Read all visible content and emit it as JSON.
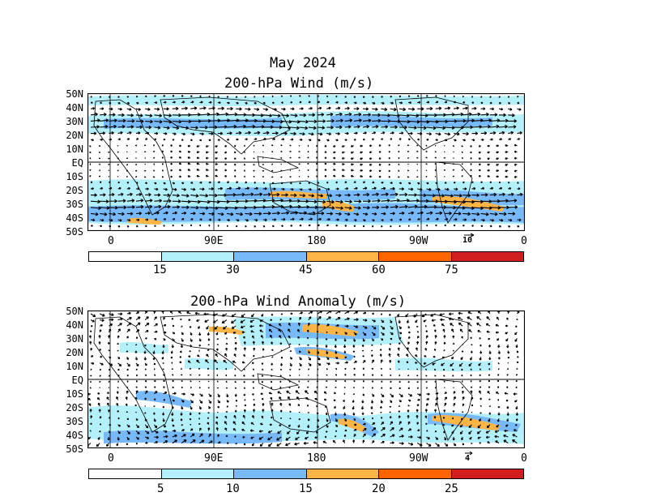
{
  "figure": {
    "title": "May 2024"
  },
  "panels": [
    {
      "title": "200-hPa Wind (m/s)",
      "lat_labels": [
        "50N",
        "40N",
        "30N",
        "20N",
        "10N",
        "EQ",
        "10S",
        "20S",
        "30S",
        "40S",
        "50S"
      ],
      "lon_labels": [
        "0",
        "90E",
        "180",
        "90W",
        "0"
      ],
      "ref_vector": "10",
      "colorbar_ticks": [
        "15",
        "30",
        "45",
        "60",
        "75"
      ]
    },
    {
      "title": "200-hPa Wind Anomaly (m/s)",
      "lat_labels": [
        "50N",
        "40N",
        "30N",
        "20N",
        "10N",
        "EQ",
        "10S",
        "20S",
        "30S",
        "40S",
        "50S"
      ],
      "lon_labels": [
        "0",
        "90E",
        "180",
        "90W",
        "0"
      ],
      "ref_vector": "4",
      "colorbar_ticks": [
        "5",
        "10",
        "15",
        "20",
        "25"
      ]
    }
  ],
  "colors": {
    "c0": "#ffffff",
    "c1": "#b4f0fa",
    "c2": "#78b9fa",
    "c3": "#ffb446",
    "c4": "#ff6400",
    "c5": "#d21e1e"
  },
  "map_data": {
    "projection": "cylindrical-equidistant",
    "lon_range": [
      -20,
      360
    ],
    "lat_range": [
      -50,
      50
    ]
  }
}
